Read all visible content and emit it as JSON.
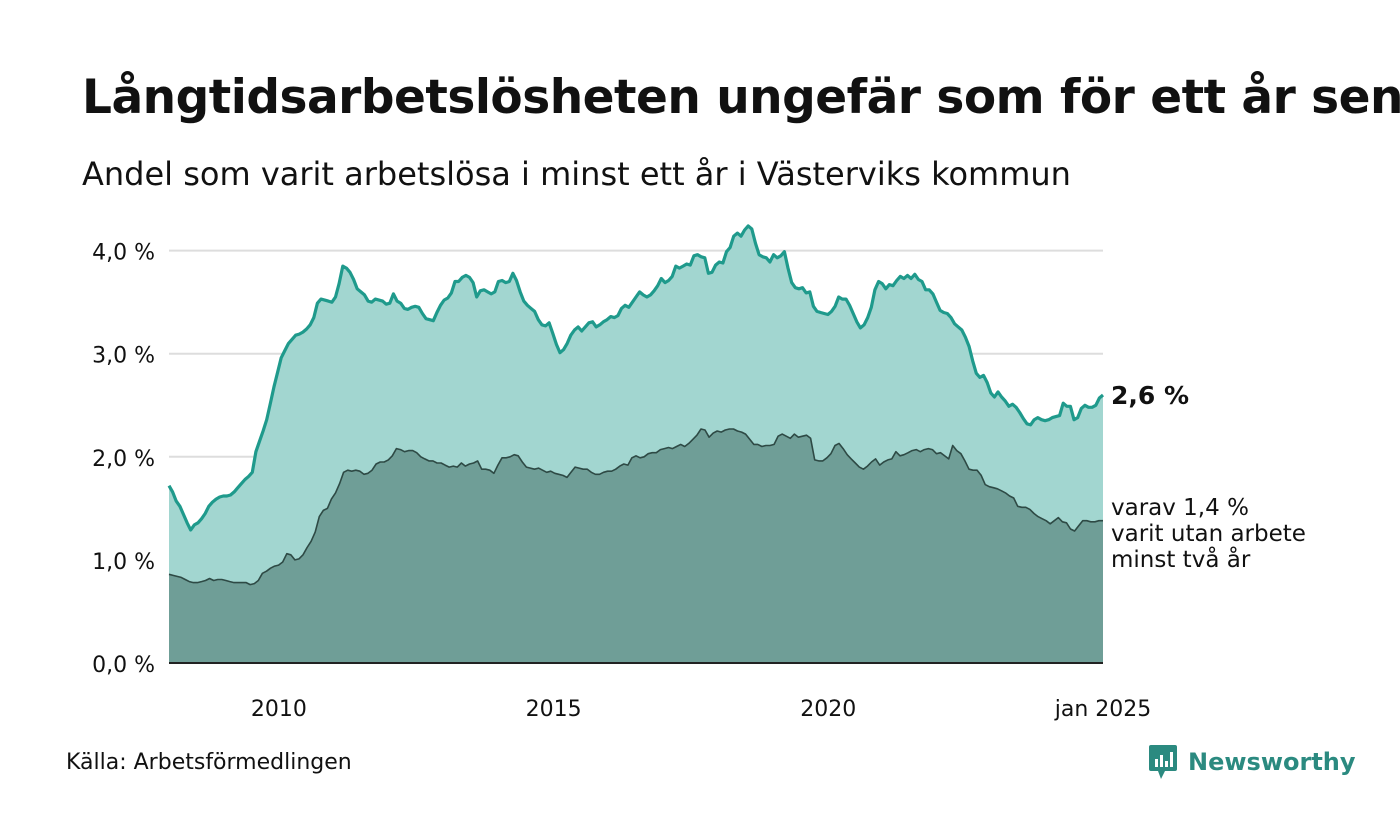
{
  "header": {
    "title": "Långtidsarbetslösheten ungefär som för ett år sen",
    "subtitle": "Andel som varit arbetslösa i minst ett år i Västerviks kommun"
  },
  "footer": {
    "source": "Källa: Arbetsförmedlingen",
    "brand": "Newsworthy"
  },
  "colors": {
    "total_fill": "#a2d6d0",
    "total_line": "#1f9a8c",
    "long_fill": "#6f9e97",
    "long_line": "#2e4a45",
    "grid": "#dddddd",
    "brand": "#2b8a80"
  },
  "chart_data": {
    "type": "area",
    "title": "Långtidsarbetslösheten ungefär som för ett år sen",
    "subtitle": "Andel som varit arbetslösa i minst ett år i Västerviks kommun",
    "x_start": "2008-01",
    "x_end": "2025-01",
    "x_tick_labels": [
      "2010",
      "2015",
      "2020",
      "jan 2025"
    ],
    "y_tick_labels": [
      "0,0 %",
      "1,0 %",
      "2,0 %",
      "3,0 %",
      "4,0 %"
    ],
    "ylim": [
      0,
      4.2
    ],
    "grid": true,
    "series": [
      {
        "key": "total",
        "end_label": "2,6 %",
        "values": [
          1.72,
          1.66,
          1.57,
          1.52,
          1.44,
          1.36,
          1.29,
          1.34,
          1.36,
          1.4,
          1.45,
          1.52,
          1.56,
          1.59,
          1.61,
          1.62,
          1.62,
          1.63,
          1.66,
          1.7,
          1.74,
          1.78,
          1.81,
          1.85,
          2.05,
          2.15,
          2.25,
          2.36,
          2.52,
          2.68,
          2.82,
          2.96,
          3.03,
          3.1,
          3.14,
          3.18,
          3.19,
          3.21,
          3.24,
          3.28,
          3.35,
          3.49,
          3.53,
          3.52,
          3.51,
          3.5,
          3.55,
          3.68,
          3.85,
          3.83,
          3.79,
          3.72,
          3.63,
          3.6,
          3.57,
          3.51,
          3.5,
          3.53,
          3.52,
          3.51,
          3.48,
          3.49,
          3.58,
          3.51,
          3.49,
          3.44,
          3.43,
          3.45,
          3.46,
          3.45,
          3.39,
          3.34,
          3.33,
          3.32,
          3.4,
          3.47,
          3.52,
          3.54,
          3.59,
          3.7,
          3.7,
          3.74,
          3.76,
          3.74,
          3.69,
          3.55,
          3.61,
          3.62,
          3.6,
          3.58,
          3.6,
          3.7,
          3.71,
          3.69,
          3.7,
          3.78,
          3.71,
          3.6,
          3.51,
          3.47,
          3.44,
          3.41,
          3.33,
          3.28,
          3.27,
          3.3,
          3.2,
          3.09,
          3.01,
          3.04,
          3.1,
          3.18,
          3.23,
          3.26,
          3.22,
          3.26,
          3.3,
          3.31,
          3.26,
          3.28,
          3.31,
          3.33,
          3.36,
          3.35,
          3.37,
          3.44,
          3.47,
          3.45,
          3.5,
          3.55,
          3.6,
          3.57,
          3.55,
          3.57,
          3.61,
          3.66,
          3.73,
          3.69,
          3.71,
          3.75,
          3.85,
          3.83,
          3.85,
          3.87,
          3.86,
          3.95,
          3.96,
          3.94,
          3.93,
          3.78,
          3.79,
          3.86,
          3.89,
          3.88,
          3.99,
          4.03,
          4.14,
          4.17,
          4.14,
          4.2,
          4.24,
          4.21,
          4.07,
          3.96,
          3.94,
          3.93,
          3.89,
          3.96,
          3.93,
          3.95,
          3.99,
          3.83,
          3.69,
          3.64,
          3.63,
          3.64,
          3.59,
          3.6,
          3.46,
          3.41,
          3.4,
          3.39,
          3.38,
          3.41,
          3.46,
          3.55,
          3.53,
          3.53,
          3.47,
          3.39,
          3.31,
          3.25,
          3.28,
          3.35,
          3.45,
          3.62,
          3.7,
          3.68,
          3.63,
          3.67,
          3.66,
          3.71,
          3.75,
          3.73,
          3.76,
          3.73,
          3.77,
          3.72,
          3.7,
          3.62,
          3.62,
          3.58,
          3.5,
          3.42,
          3.4,
          3.39,
          3.35,
          3.29,
          3.26,
          3.23,
          3.16,
          3.07,
          2.93,
          2.81,
          2.77,
          2.79,
          2.72,
          2.62,
          2.58,
          2.63,
          2.58,
          2.54,
          2.49,
          2.51,
          2.48,
          2.43,
          2.37,
          2.32,
          2.31,
          2.36,
          2.38,
          2.36,
          2.35,
          2.36,
          2.38,
          2.39,
          2.4,
          2.52,
          2.49,
          2.49,
          2.36,
          2.38,
          2.47,
          2.5,
          2.48,
          2.48,
          2.5,
          2.57,
          2.6
        ]
      },
      {
        "key": "long",
        "end_label_lines": [
          "varav 1,4 %",
          "varit utan arbete",
          "minst två år"
        ],
        "values": [
          0.86,
          0.85,
          0.84,
          0.83,
          0.81,
          0.79,
          0.78,
          0.78,
          0.79,
          0.8,
          0.82,
          0.8,
          0.81,
          0.81,
          0.8,
          0.79,
          0.78,
          0.78,
          0.78,
          0.78,
          0.76,
          0.77,
          0.8,
          0.87,
          0.89,
          0.92,
          0.94,
          0.95,
          0.98,
          1.06,
          1.05,
          1.0,
          1.01,
          1.05,
          1.12,
          1.18,
          1.27,
          1.42,
          1.48,
          1.5,
          1.59,
          1.65,
          1.74,
          1.85,
          1.87,
          1.86,
          1.87,
          1.86,
          1.83,
          1.84,
          1.87,
          1.93,
          1.95,
          1.95,
          1.97,
          2.01,
          2.08,
          2.07,
          2.05,
          2.06,
          2.06,
          2.04,
          2.0,
          1.98,
          1.96,
          1.96,
          1.94,
          1.94,
          1.92,
          1.9,
          1.91,
          1.9,
          1.94,
          1.91,
          1.93,
          1.94,
          1.96,
          1.88,
          1.88,
          1.87,
          1.84,
          1.92,
          1.99,
          1.99,
          2.0,
          2.02,
          2.01,
          1.95,
          1.9,
          1.89,
          1.88,
          1.89,
          1.87,
          1.85,
          1.86,
          1.84,
          1.83,
          1.82,
          1.8,
          1.85,
          1.9,
          1.89,
          1.88,
          1.88,
          1.85,
          1.83,
          1.83,
          1.85,
          1.86,
          1.86,
          1.88,
          1.91,
          1.93,
          1.92,
          1.99,
          2.01,
          1.99,
          2.0,
          2.03,
          2.04,
          2.04,
          2.07,
          2.08,
          2.09,
          2.08,
          2.1,
          2.12,
          2.1,
          2.13,
          2.17,
          2.21,
          2.27,
          2.26,
          2.19,
          2.23,
          2.25,
          2.24,
          2.26,
          2.27,
          2.27,
          2.25,
          2.24,
          2.22,
          2.17,
          2.12,
          2.12,
          2.1,
          2.11,
          2.11,
          2.12,
          2.2,
          2.22,
          2.2,
          2.18,
          2.22,
          2.19,
          2.2,
          2.21,
          2.18,
          1.97,
          1.96,
          1.96,
          1.99,
          2.03,
          2.11,
          2.13,
          2.08,
          2.02,
          1.98,
          1.94,
          1.9,
          1.88,
          1.91,
          1.95,
          1.98,
          1.92,
          1.95,
          1.97,
          1.98,
          2.05,
          2.01,
          2.02,
          2.04,
          2.06,
          2.07,
          2.05,
          2.07,
          2.08,
          2.07,
          2.03,
          2.04,
          2.01,
          1.98,
          2.11,
          2.06,
          2.03,
          1.96,
          1.88,
          1.87,
          1.87,
          1.82,
          1.73,
          1.71,
          1.7,
          1.69,
          1.67,
          1.65,
          1.62,
          1.6,
          1.52,
          1.51,
          1.51,
          1.49,
          1.45,
          1.42,
          1.4,
          1.38,
          1.35,
          1.38,
          1.41,
          1.37,
          1.36,
          1.3,
          1.28,
          1.33,
          1.38,
          1.38,
          1.37,
          1.37,
          1.38,
          1.38
        ]
      }
    ]
  }
}
